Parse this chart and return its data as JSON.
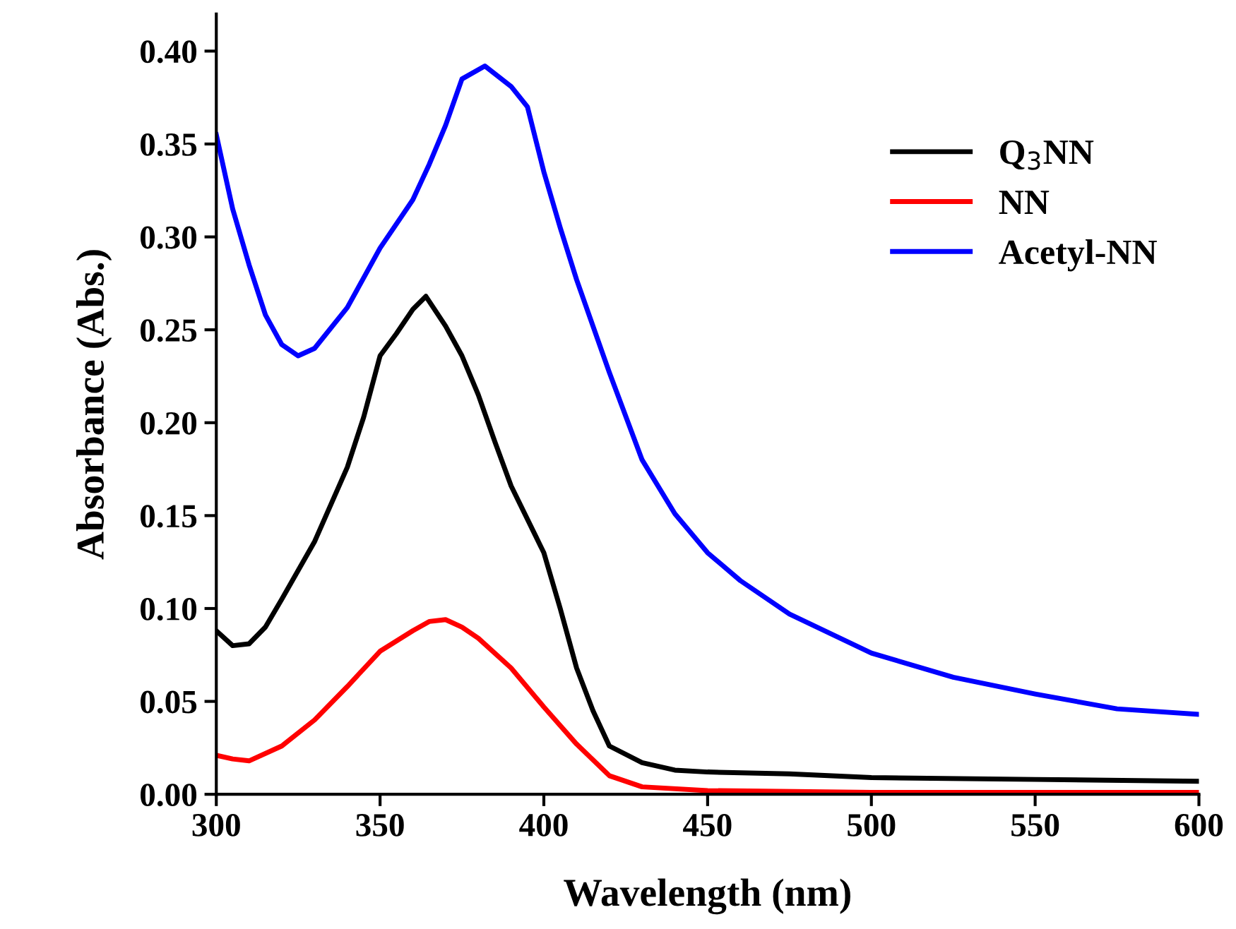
{
  "chart_data": {
    "type": "line",
    "xlabel": "Wavelength (nm)",
    "ylabel": "Absorbance (Abs.)",
    "xlim": [
      300,
      600
    ],
    "xticks": [
      300,
      350,
      400,
      450,
      500,
      550,
      600
    ],
    "ylim": [
      0,
      0.42
    ],
    "yticks": [
      {
        "value": 0,
        "label": "0.00"
      },
      {
        "value": 0.05,
        "label": "0.05"
      },
      {
        "value": 0.1,
        "label": "0.10"
      },
      {
        "value": 0.15,
        "label": "0.15"
      },
      {
        "value": 0.2,
        "label": "0.20"
      },
      {
        "value": 0.25,
        "label": "0.25"
      },
      {
        "value": 0.3,
        "label": "0.30"
      },
      {
        "value": 0.35,
        "label": "0.35"
      },
      {
        "value": 0.4,
        "label": "0.40"
      }
    ],
    "grid": false,
    "legend": "top right",
    "marker": "none",
    "line_style": "solid",
    "series": [
      {
        "name": "Q$_{3}$NN",
        "color": "#000000",
        "x": [
          300,
          305,
          310,
          315,
          320,
          330,
          340,
          345,
          350,
          355,
          360,
          364,
          370,
          375,
          380,
          385,
          390,
          400,
          405,
          410,
          415,
          420,
          430,
          440,
          450,
          475,
          500,
          550,
          600
        ],
        "values": [
          0.088,
          0.08,
          0.081,
          0.09,
          0.105,
          0.136,
          0.176,
          0.203,
          0.236,
          0.248,
          0.261,
          0.268,
          0.252,
          0.236,
          0.215,
          0.19,
          0.166,
          0.13,
          0.1,
          0.068,
          0.045,
          0.026,
          0.017,
          0.013,
          0.012,
          0.011,
          0.009,
          0.008,
          0.007
        ]
      },
      {
        "name": "NN",
        "color": "#ff0000",
        "x": [
          300,
          305,
          310,
          320,
          330,
          340,
          350,
          360,
          365,
          370,
          375,
          380,
          390,
          400,
          410,
          420,
          430,
          450,
          500,
          600
        ],
        "values": [
          0.021,
          0.019,
          0.018,
          0.026,
          0.04,
          0.058,
          0.077,
          0.088,
          0.093,
          0.094,
          0.09,
          0.084,
          0.068,
          0.047,
          0.027,
          0.01,
          0.004,
          0.002,
          0.001,
          0.001
        ]
      },
      {
        "name": "Acetyl-NN",
        "color": "#0000ff",
        "x": [
          300,
          305,
          310,
          315,
          320,
          325,
          330,
          340,
          350,
          360,
          365,
          370,
          375,
          382,
          390,
          395,
          400,
          405,
          410,
          420,
          430,
          440,
          450,
          460,
          475,
          500,
          525,
          550,
          575,
          600
        ],
        "values": [
          0.355,
          0.315,
          0.285,
          0.258,
          0.242,
          0.236,
          0.24,
          0.262,
          0.294,
          0.32,
          0.339,
          0.36,
          0.385,
          0.392,
          0.381,
          0.37,
          0.335,
          0.305,
          0.277,
          0.227,
          0.18,
          0.151,
          0.13,
          0.115,
          0.097,
          0.076,
          0.063,
          0.054,
          0.046,
          0.043
        ]
      }
    ]
  }
}
